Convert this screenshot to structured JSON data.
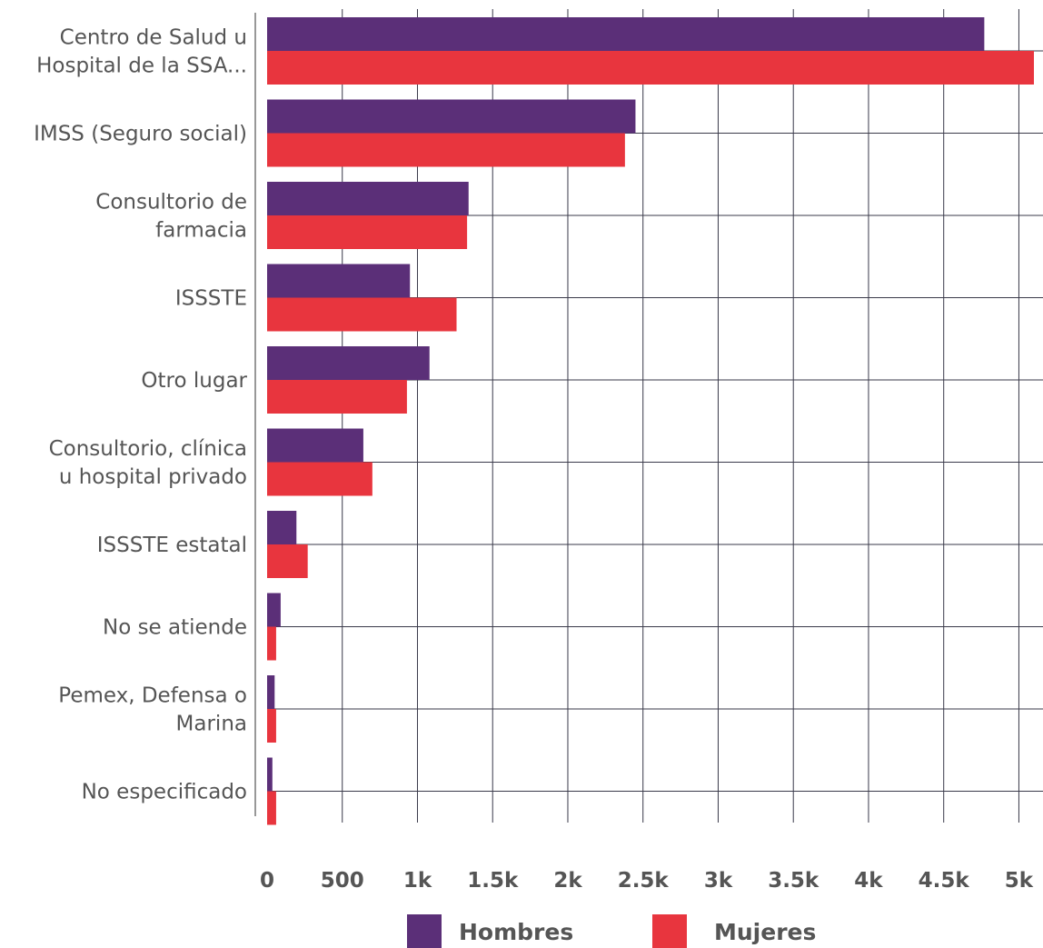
{
  "chart_data": {
    "type": "bar",
    "orientation": "horizontal",
    "categories": [
      [
        "Centro de Salud u",
        "Hospital de la SSA..."
      ],
      [
        "IMSS (Seguro social)"
      ],
      [
        "Consultorio de",
        "farmacia"
      ],
      [
        "ISSSTE"
      ],
      [
        "Otro lugar"
      ],
      [
        "Consultorio, clínica",
        "u hospital privado"
      ],
      [
        "ISSSTE estatal"
      ],
      [
        "No se atiende"
      ],
      [
        "Pemex, Defensa o",
        "Marina"
      ],
      [
        "No especificado"
      ]
    ],
    "series": [
      {
        "name": "Hombres",
        "color": "#5b2f78",
        "values": [
          4770,
          2450,
          1340,
          950,
          1080,
          640,
          195,
          90,
          50,
          35
        ]
      },
      {
        "name": "Mujeres",
        "color": "#e8353e",
        "values": [
          5100,
          2380,
          1330,
          1260,
          930,
          700,
          270,
          60,
          60,
          60
        ]
      }
    ],
    "xlim": [
      0,
      5100
    ],
    "x_ticks": [
      0,
      500,
      1000,
      1500,
      2000,
      2500,
      3000,
      3500,
      4000,
      4500,
      5000
    ],
    "x_tick_labels": [
      "0",
      "500",
      "1k",
      "1.5k",
      "2k",
      "2.5k",
      "3k",
      "3.5k",
      "4k",
      "4.5k",
      "5k"
    ],
    "grid": true,
    "legend_position": "bottom"
  }
}
